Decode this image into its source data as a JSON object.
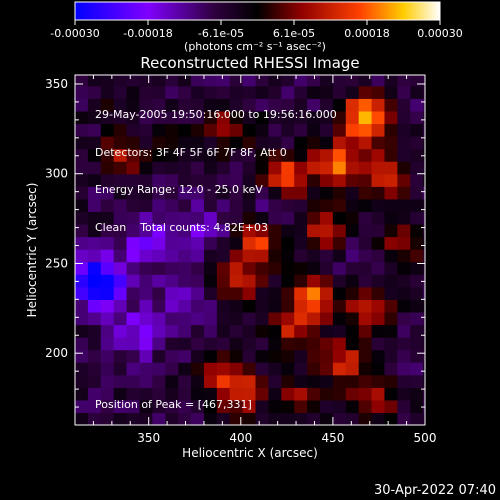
{
  "chart_data": {
    "type": "heatmap",
    "title": "Reconstructed RHESSI Image",
    "xlabel": "Heliocentric X (arcsec)",
    "ylabel": "Heliocentric Y (arcsec)",
    "xlim": [
      310,
      500
    ],
    "ylim": [
      160,
      355
    ],
    "x_ticks": [
      "350",
      "400",
      "450",
      "500"
    ],
    "y_ticks": [
      "200",
      "250",
      "300",
      "350"
    ],
    "colorbar": {
      "ticks": [
        "-0.00030",
        "-0.00018",
        "-6.1e-05",
        "6.1e-05",
        "0.00018",
        "0.00030"
      ],
      "label": "(photons cm⁻² s⁻¹ asec⁻²)",
      "range": [
        -0.0003,
        0.0003
      ],
      "colors": [
        "#0000ff",
        "#8000ff",
        "#3a0050",
        "#000000",
        "#800000",
        "#ff4000",
        "#ffff00",
        "#ffffff"
      ]
    },
    "annotations": [
      "29-May-2005 19:50:16.000 to 19:56:16.000",
      "Detectors: 3F 4F 5F 6F 7F 8F, Att 0",
      "Energy Range: 12.0 - 25.0 keV",
      "Clean    Total counts: 4.82E+03"
    ],
    "peak_text": "Position of Peak = [467,331]",
    "sources": [
      {
        "x": 467,
        "y": 331,
        "amp": 0.0003
      },
      {
        "x": 452,
        "y": 305,
        "amp": 0.00024
      },
      {
        "x": 478,
        "y": 300,
        "amp": 0.0002
      },
      {
        "x": 425,
        "y": 298,
        "amp": 0.00022
      },
      {
        "x": 445,
        "y": 270,
        "amp": 0.00018
      },
      {
        "x": 410,
        "y": 262,
        "amp": 0.0002
      },
      {
        "x": 400,
        "y": 240,
        "amp": 0.00017
      },
      {
        "x": 440,
        "y": 232,
        "amp": 0.00024
      },
      {
        "x": 470,
        "y": 225,
        "amp": 0.0002
      },
      {
        "x": 428,
        "y": 212,
        "amp": 0.00016
      },
      {
        "x": 456,
        "y": 195,
        "amp": 0.00019
      },
      {
        "x": 390,
        "y": 190,
        "amp": 0.00015
      },
      {
        "x": 400,
        "y": 178,
        "amp": 0.00016
      },
      {
        "x": 432,
        "y": 175,
        "amp": 0.00012
      },
      {
        "x": 473,
        "y": 175,
        "amp": 0.00014
      },
      {
        "x": 395,
        "y": 325,
        "amp": 0.00014
      },
      {
        "x": 335,
        "y": 310,
        "amp": 0.00013
      },
      {
        "x": 365,
        "y": 318,
        "amp": 8e-05
      },
      {
        "x": 488,
        "y": 262,
        "amp": 0.00012
      },
      {
        "x": 330,
        "y": 340,
        "amp": 5e-05
      }
    ],
    "sinks": [
      {
        "x": 323,
        "y": 240,
        "amp": 0.00028
      },
      {
        "x": 350,
        "y": 262,
        "amp": 0.00012
      },
      {
        "x": 345,
        "y": 212,
        "amp": 0.00011
      },
      {
        "x": 380,
        "y": 270,
        "amp": 8e-05
      },
      {
        "x": 420,
        "y": 280,
        "amp": 6e-05
      },
      {
        "x": 460,
        "y": 250,
        "amp": 5e-05
      },
      {
        "x": 370,
        "y": 230,
        "amp": 8e-05
      }
    ],
    "background": -6e-05
  },
  "timestamp": "30-Apr-2022 07:40"
}
